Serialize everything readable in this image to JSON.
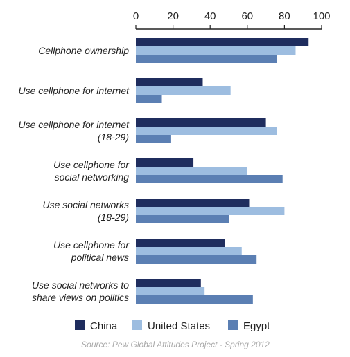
{
  "chart_data": {
    "type": "bar",
    "orientation": "horizontal",
    "categories": [
      [
        "Cellphone ownership"
      ],
      [
        "Use cellphone for internet"
      ],
      [
        "Use cellphone for internet",
        "(18-29)"
      ],
      [
        "Use cellphone for",
        "social networking"
      ],
      [
        "Use social networks",
        "(18-29)"
      ],
      [
        "Use cellphone for",
        "political news"
      ],
      [
        "Use social networks to",
        "share views on politics"
      ]
    ],
    "series": [
      {
        "name": "China",
        "color": "#1f2d5e",
        "values": [
          93,
          36,
          70,
          31,
          61,
          48,
          35
        ]
      },
      {
        "name": "United States",
        "color": "#9dbde0",
        "values": [
          86,
          51,
          76,
          60,
          80,
          57,
          37
        ]
      },
      {
        "name": "Egypt",
        "color": "#5b7fb3",
        "values": [
          76,
          14,
          19,
          79,
          50,
          65,
          63
        ]
      }
    ],
    "xlim": [
      0,
      100
    ],
    "x_ticks": [
      "0",
      "20",
      "40",
      "60",
      "80",
      "100"
    ],
    "grid": false,
    "legend_position": "bottom",
    "source": "Source: Pew Global Attitudes Project - Spring 2012"
  }
}
